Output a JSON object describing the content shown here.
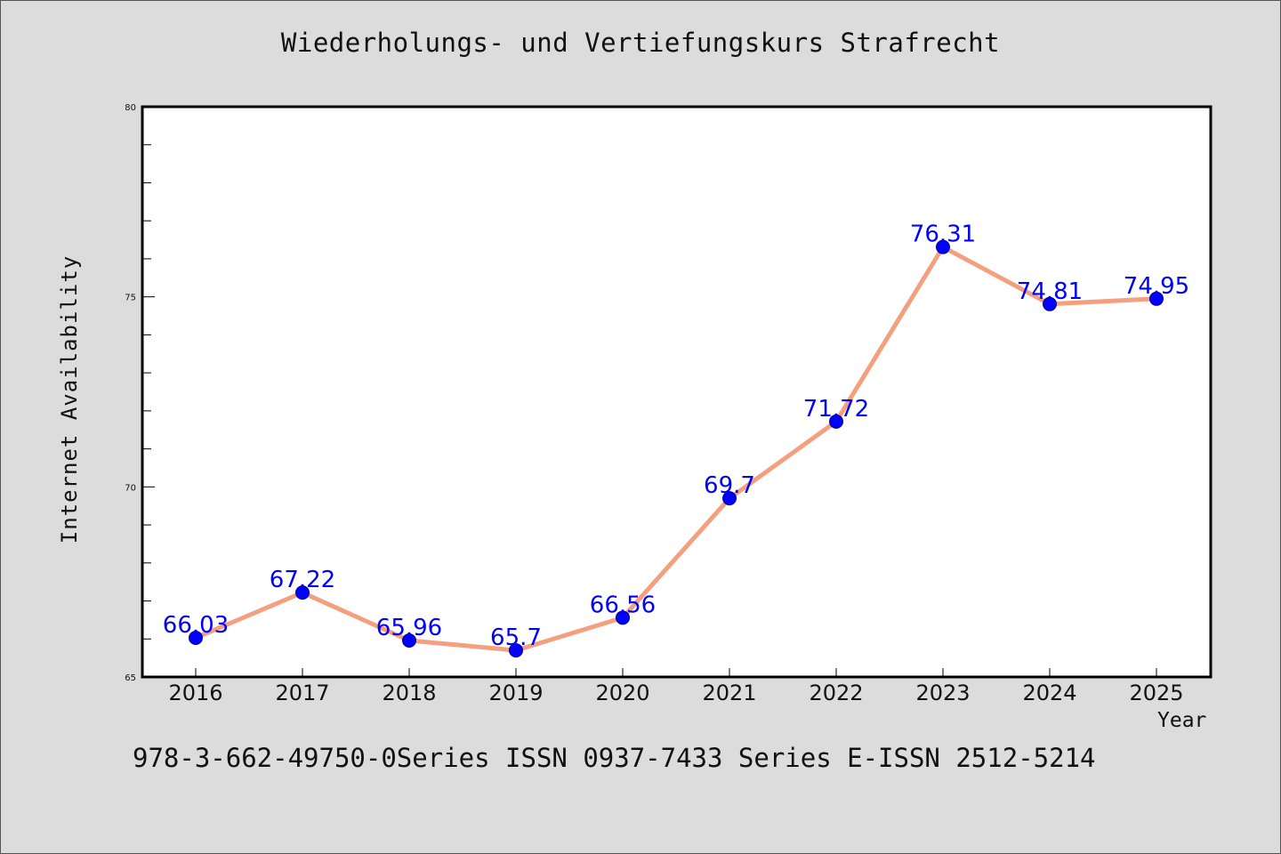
{
  "chart_data": {
    "type": "line",
    "title": "Wiederholungs- und Vertiefungskurs Strafrecht",
    "xlabel": "Year",
    "ylabel": "Internet Availability",
    "categories": [
      "2016",
      "2017",
      "2018",
      "2019",
      "2020",
      "2021",
      "2022",
      "2023",
      "2024",
      "2025"
    ],
    "series": [
      {
        "values": [
          66.03,
          67.22,
          65.96,
          65.7,
          66.56,
          69.7,
          71.72,
          76.31,
          74.81,
          74.95
        ],
        "data_labels": [
          "66.03",
          "67.22",
          "65.96",
          "65.7",
          "66.56",
          "69.7",
          "71.72",
          "76.31",
          "74.81",
          "74.95"
        ],
        "line_color": "#f4a07e",
        "marker_color": "#0000ff"
      }
    ],
    "ylim": [
      65,
      80
    ],
    "yticks": [
      "65",
      "70",
      "75",
      "80"
    ],
    "grid": false,
    "legend": "none"
  },
  "footer": {
    "text": "978-3-662-49750-0Series ISSN 0937-7433 Series E-ISSN 2512-5214"
  }
}
